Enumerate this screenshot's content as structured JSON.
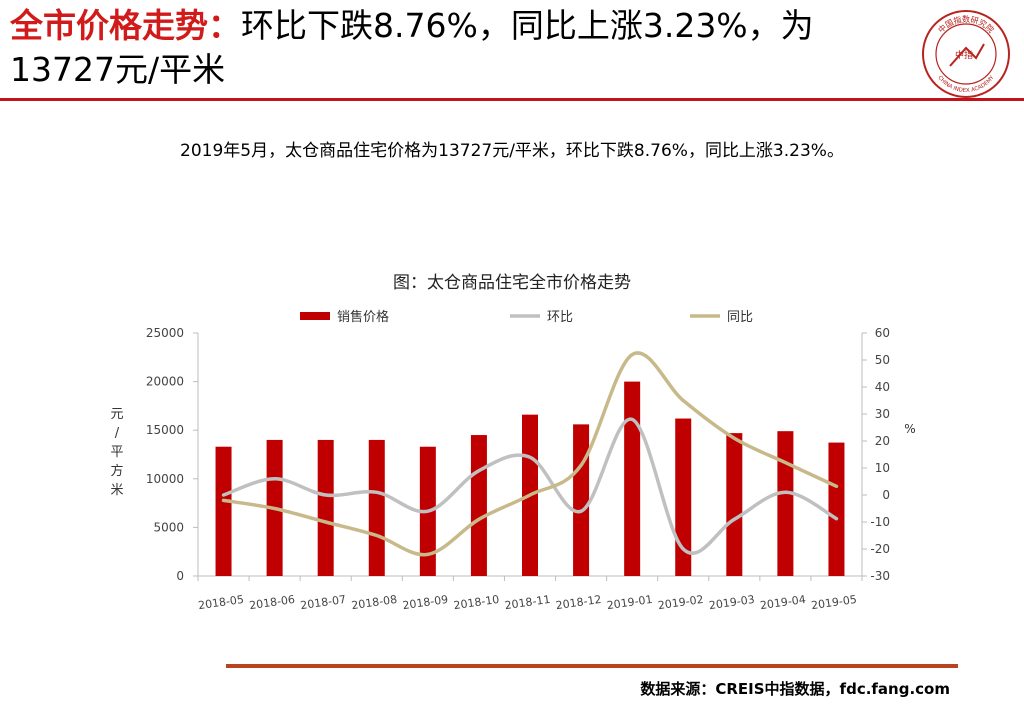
{
  "header": {
    "title_highlight": "全市价格走势：",
    "title_rest": "环比下跌8.76%，同比上涨3.23%，为13727元/平米"
  },
  "logo": {
    "name": "China Index Academy seal",
    "text_cn": "中国指数研究院",
    "text_en": "CHINA INDEX ACADEMY",
    "center": "中指"
  },
  "summary": "2019年5月，太仓商品住宅价格为13727元/平米，环比下跌8.76%，同比上涨3.23%。",
  "chart_data": {
    "type": "bar",
    "title": "图：太仓商品住宅全市价格走势",
    "categories": [
      "2018-05",
      "2018-06",
      "2018-07",
      "2018-08",
      "2018-09",
      "2018-10",
      "2018-11",
      "2018-12",
      "2019-01",
      "2019-02",
      "2019-03",
      "2019-04",
      "2019-05"
    ],
    "series": [
      {
        "name": "销售价格",
        "type": "bar",
        "axis": "left",
        "color": "#c00000",
        "values": [
          13300,
          14000,
          14000,
          14000,
          13300,
          14500,
          16600,
          15600,
          20000,
          16200,
          14700,
          14900,
          13727
        ]
      },
      {
        "name": "环比",
        "type": "line",
        "axis": "right",
        "color": "#c0c0c0",
        "values": [
          0,
          6,
          0,
          1,
          -6,
          9,
          14,
          -6,
          28,
          -20,
          -9,
          1,
          -8.76
        ]
      },
      {
        "name": "同比",
        "type": "line",
        "axis": "right",
        "color": "#c8b98a",
        "values": [
          -2,
          -5,
          -10,
          -15,
          -22,
          -9,
          0,
          11,
          52,
          35,
          21,
          12,
          3.23
        ]
      }
    ],
    "ylabel": "元/平方米",
    "ylim": [
      0,
      25000
    ],
    "yticks": [
      0,
      5000,
      10000,
      15000,
      20000,
      25000
    ],
    "y2label": "%",
    "y2lim": [
      -30,
      60
    ],
    "y2ticks": [
      -30,
      -20,
      -10,
      0,
      10,
      20,
      30,
      40,
      50,
      60
    ],
    "legend": "top",
    "grid": false
  },
  "source": "数据来源：CREIS中指数据，fdc.fang.com",
  "colors": {
    "accent": "#c0141a",
    "bar": "#c00000",
    "mom": "#c0c0c0",
    "yoy": "#c8b98a"
  }
}
